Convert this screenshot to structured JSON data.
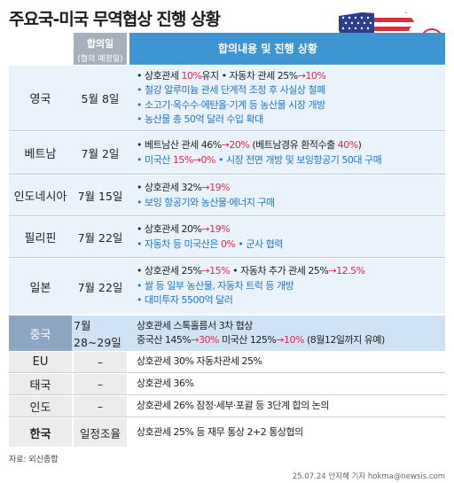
{
  "title": "주요국-미국 무역협상 진행 상황",
  "header": {
    "date_l1": "합의일",
    "date_l2": "(협의 예정일)",
    "content": "합의내용 및 진행 상황"
  },
  "rows": [
    {
      "country": "영국",
      "date": "5월 8일",
      "lines": [
        {
          "a": "• 상호관세 ",
          "b": "10%",
          "c": "유지   • 자동차 관세 25%",
          "d": "→10%"
        },
        {
          "text": "• 철강 알루미늄 관세 단계적 조정 후 사실상 철폐"
        },
        {
          "text": "• 소고기·옥수수·에탄올·기계 등 농산물 시장 개방"
        },
        {
          "text": "• 농산물 총 50억 달러 수입 확대"
        }
      ]
    },
    {
      "country": "베트남",
      "date": "7월 2일",
      "lines": [
        {
          "a": "• 베트남산 관세 46%",
          "b": "→20%",
          "c": " (베트남경유 환적수출 ",
          "d": "40%",
          "e": ")"
        },
        {
          "a": "• 미국산 ",
          "b": "15%",
          "c": "→0%",
          "d": "   • 시장 전면 개방 및 보잉항공기 50대 구매"
        }
      ]
    },
    {
      "country": "인도네시아",
      "date": "7월 15일",
      "lines": [
        {
          "a": "• 상호관세 32%",
          "b": "→19%"
        },
        {
          "text": "• 보잉 항공기와 농산물·에너지 구매"
        }
      ]
    },
    {
      "country": "필리핀",
      "date": "7월 22일",
      "lines": [
        {
          "a": "• 상호관세 20%",
          "b": "→19%"
        },
        {
          "a": "• 자동차 등 미국산은 ",
          "b": "0%",
          "c": "  • 군사 협력"
        }
      ]
    },
    {
      "country": "일본",
      "date": "7월 22일",
      "lines": [
        {
          "a": "• 상호관세 25%",
          "b": "→15%",
          "c": "   • 자동차 추가 관세 25%",
          "d": "→12.5%"
        },
        {
          "text": "• 쌀 등 일부 농산물, 자동차 트럭 등 개방"
        },
        {
          "text": "• 대미투자 5500억 달러"
        }
      ]
    }
  ],
  "china": {
    "country": "중국",
    "date": "7월28~29일",
    "line1": "상호관세 스톡홀름서 3차 협상",
    "line2": {
      "a": "중국산 145%",
      "b": "→30%",
      "c": "  미국산 125%",
      "d": "→10%",
      "e": "  (8월12일까지 유예)"
    }
  },
  "others": [
    {
      "country": "EU",
      "date": "–",
      "text": "상호관세 30% 자동차관세 25%"
    },
    {
      "country": "태국",
      "date": "–",
      "text": "상호관세 36%"
    },
    {
      "country": "인도",
      "date": "–",
      "text": "상호관세 26% 잠정·세부·포괄 등 3단계 합의 논의"
    },
    {
      "country": "한국",
      "date": "일정조율",
      "text": "상호관세 25% 등 재무 통상 2+2 통상협의"
    }
  ],
  "source": "자료: 외신종합",
  "credit": "25.07.24 안지혜 기자 hokma@newsis.com",
  "percent_badge": "%"
}
